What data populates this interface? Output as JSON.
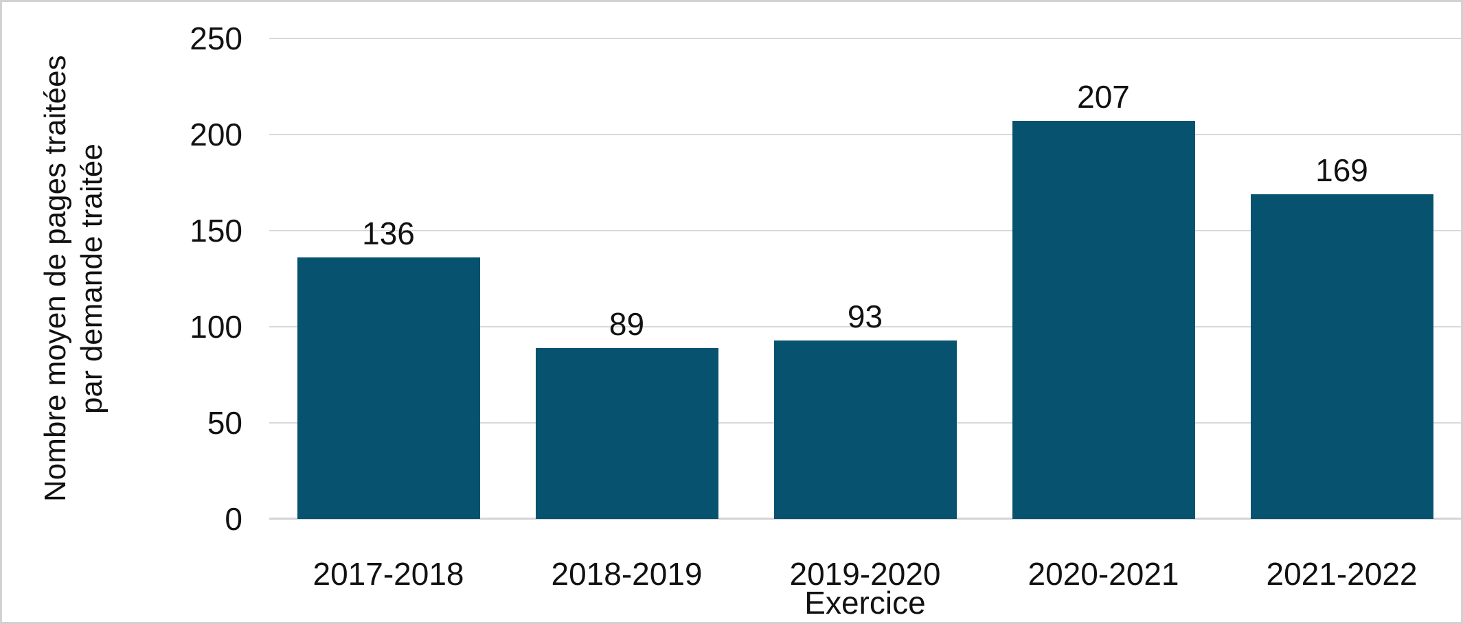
{
  "chart_data": {
    "type": "bar",
    "categories": [
      "2017-2018",
      "2018-2019",
      "2019-2020",
      "2020-2021",
      "2021-2022"
    ],
    "values": [
      136,
      89,
      93,
      207,
      169
    ],
    "bar_labels": [
      "136",
      "89",
      "93",
      "207",
      "169"
    ],
    "title": "",
    "xlabel": "Exercice",
    "ylabel": "Nombre moyen de pages traitées par demande traitée",
    "ylabel_line1": "Nombre moyen de pages traitées",
    "ylabel_line2": "par demande traitée",
    "ylim": [
      0,
      250
    ],
    "yticks": [
      250,
      200,
      150,
      100,
      50,
      0
    ],
    "grid": "horizontal-only",
    "legend": "none",
    "colors": {
      "bar_fill": "#06526f",
      "gridline": "#d9d9d9",
      "axis_baseline": "#d4d4d4",
      "text": "#111111",
      "figure_border": "#d2d2d2",
      "background": "#ffffff"
    }
  }
}
